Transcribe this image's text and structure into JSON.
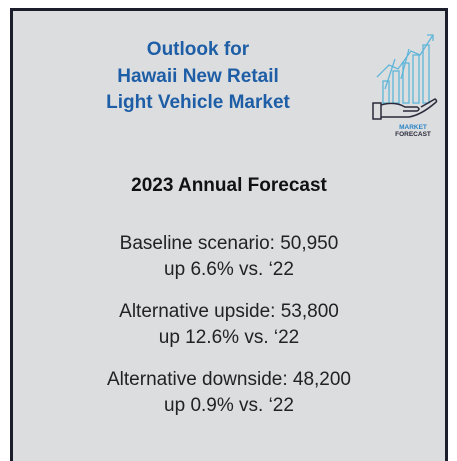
{
  "header": {
    "title": [
      "Outlook for",
      "Hawaii New Retail",
      "Light Vehicle Market"
    ],
    "icon_label": [
      "MARKET",
      "FORECAST"
    ]
  },
  "forecast": {
    "heading": "2023 Annual Forecast",
    "scenarios": [
      {
        "label": "Baseline scenario: 50,950",
        "change": "up 6.6% vs. ‘22"
      },
      {
        "label": "Alternative upside: 53,800",
        "change": "up 12.6% vs. ‘22"
      },
      {
        "label": "Alternative downside: 48,200",
        "change": "up 0.9% vs. ‘22"
      }
    ]
  }
}
